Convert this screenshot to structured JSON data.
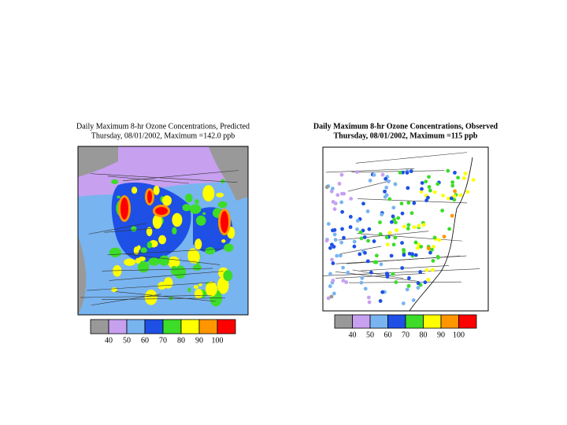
{
  "panels": [
    {
      "title": "Daily Maximum 8-hr Ozone Concentrations, Predicted",
      "subtitle": "Thursday, 08/01/2002, Maximum =142.0 ppb"
    },
    {
      "title": "Daily Maximum 8-hr Ozone Concentrations, Observed",
      "subtitle": "Thursday, 08/01/2002, Maximum =115 ppb"
    }
  ],
  "legend": {
    "colors": [
      "#999999",
      "#c8a0f0",
      "#78b4f0",
      "#1e50e6",
      "#3cdc28",
      "#ffff00",
      "#ff9600",
      "#ff0000"
    ],
    "labels": [
      "40",
      "50",
      "60",
      "70",
      "80",
      "90",
      "100"
    ]
  }
}
